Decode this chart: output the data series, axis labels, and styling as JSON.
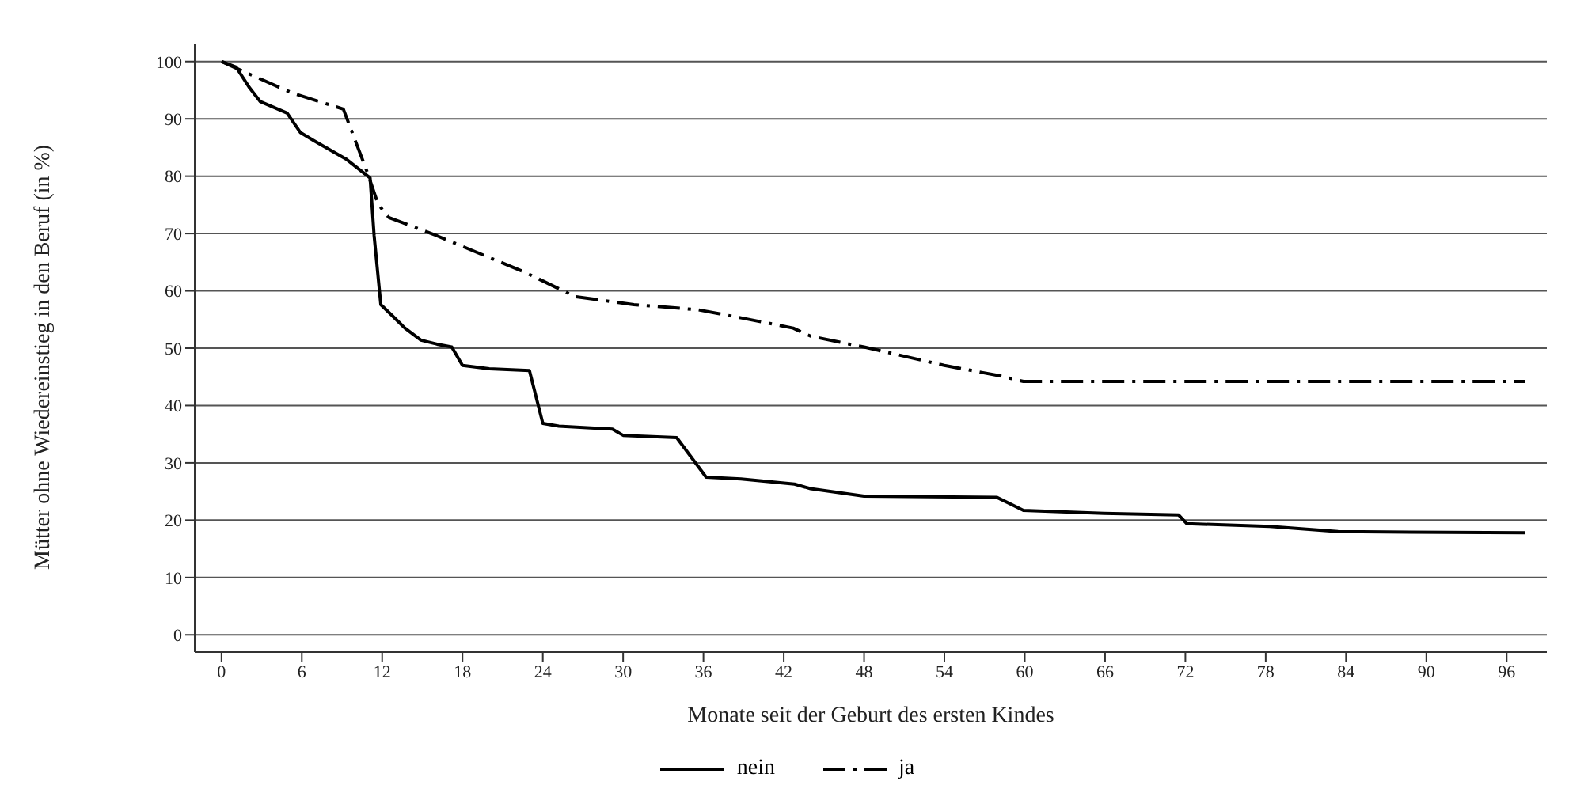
{
  "chart_data": {
    "type": "line",
    "xlabel": "Monate seit der Geburt des ersten Kindes",
    "ylabel": "Mütter ohne Wiedereinstieg in den Beruf (in %)",
    "xlim": [
      -2,
      99
    ],
    "xticks": [
      0,
      6,
      12,
      18,
      24,
      30,
      36,
      42,
      48,
      54,
      60,
      66,
      72,
      78,
      84,
      90,
      96
    ],
    "ylim": [
      -3,
      103
    ],
    "yticks": [
      0,
      10,
      20,
      30,
      40,
      50,
      60,
      70,
      80,
      90,
      100
    ],
    "grid": "y",
    "legend": "bottom",
    "series": [
      {
        "name": "nein",
        "color": "#000000",
        "line_style": "solid",
        "x": [
          0,
          1.1,
          2.1,
          2.9,
          4.9,
          5.9,
          6.9,
          9.3,
          11.1,
          11.4,
          11.9,
          12.7,
          13.7,
          14.9,
          16.1,
          17.2,
          18,
          20,
          23,
          24,
          25.2,
          29.2,
          30,
          34,
          36.2,
          38.8,
          42.8,
          44,
          48,
          57.9,
          59.9,
          65.9,
          71.5,
          72.1,
          78.3,
          83.4,
          97.4
        ],
        "values": [
          100,
          99,
          95.4,
          93,
          91,
          87.6,
          86.2,
          83,
          79.7,
          69.6,
          57.6,
          55.8,
          53.5,
          51.4,
          50.7,
          50.2,
          47,
          46.4,
          46.1,
          36.9,
          36.4,
          35.9,
          34.8,
          34.4,
          27.5,
          27.2,
          26.3,
          25.5,
          24.2,
          24,
          21.7,
          21.2,
          20.9,
          19.4,
          18.9,
          18,
          17.8
        ]
      },
      {
        "name": "ja",
        "color": "#000000",
        "line_style": "dashed",
        "x": [
          0,
          1.7,
          5.3,
          9.1,
          10.9,
          11.7,
          12.5,
          16.1,
          22.8,
          26.4,
          30.8,
          35.6,
          38.8,
          42.7,
          44,
          48,
          54,
          58.1,
          59.9,
          97.4
        ],
        "values": [
          100,
          98.2,
          94.5,
          91.7,
          80.6,
          75.1,
          72.8,
          69.6,
          63.1,
          59,
          57.6,
          56.7,
          55.3,
          53.5,
          52.1,
          50.2,
          47,
          45.2,
          44.2,
          44.2
        ]
      }
    ]
  }
}
